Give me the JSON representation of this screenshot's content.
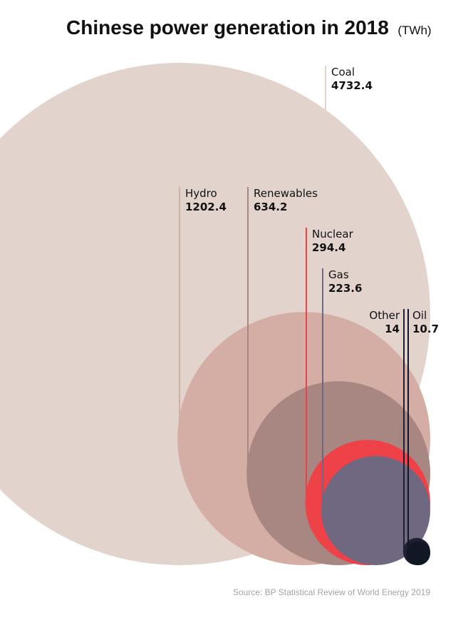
{
  "chart_data": {
    "type": "bubble",
    "title": "Chinese power generation in 2018",
    "unit": "(TWh)",
    "source": "Source: BP Statistical Review of World Energy 2019",
    "series": [
      {
        "name": "Coal",
        "value": 4732.4,
        "value_label": "4732.4",
        "color": "#e3d3cd"
      },
      {
        "name": "Hydro",
        "value": 1202.4,
        "value_label": "1202.4",
        "color": "#d4aea5"
      },
      {
        "name": "Renewables",
        "value": 634.2,
        "value_label": "634.2",
        "color": "#a88783"
      },
      {
        "name": "Nuclear",
        "value": 294.4,
        "value_label": "294.4",
        "color": "#ef4148"
      },
      {
        "name": "Gas",
        "value": 223.6,
        "value_label": "223.6",
        "color": "#6f6880"
      },
      {
        "name": "Other",
        "value": 14,
        "value_label": "14",
        "color": "#1f2034"
      },
      {
        "name": "Oil",
        "value": 10.7,
        "value_label": "10.7",
        "color": "#121725"
      }
    ]
  }
}
